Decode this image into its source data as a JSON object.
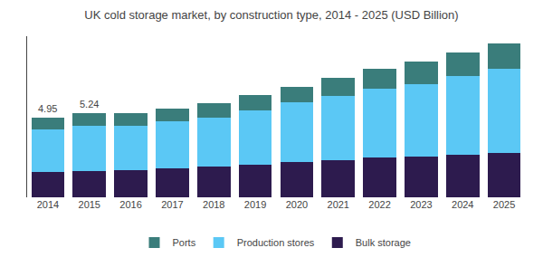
{
  "chart_data": {
    "type": "bar",
    "title": "UK cold storage market, by construction type, 2014 - 2025 (USD Billion)",
    "stacked": true,
    "categories": [
      "2014",
      "2015",
      "2016",
      "2017",
      "2018",
      "2019",
      "2020",
      "2021",
      "2022",
      "2023",
      "2024",
      "2025"
    ],
    "series": [
      {
        "name": "Bulk storage",
        "color": "#2d1b4e",
        "values": [
          1.55,
          1.62,
          1.7,
          1.8,
          1.9,
          2.05,
          2.18,
          2.32,
          2.45,
          2.55,
          2.65,
          2.78
        ]
      },
      {
        "name": "Production stores",
        "color": "#5bc8f5",
        "values": [
          2.65,
          2.8,
          2.75,
          2.9,
          3.05,
          3.35,
          3.7,
          4.0,
          4.3,
          4.5,
          4.9,
          5.2
        ]
      },
      {
        "name": "Ports",
        "color": "#3a7d7b",
        "values": [
          0.75,
          0.82,
          0.78,
          0.82,
          0.87,
          0.95,
          1.0,
          1.1,
          1.2,
          1.35,
          1.45,
          1.55
        ]
      }
    ],
    "annotations": [
      {
        "category": "2014",
        "text": "4.95"
      },
      {
        "category": "2015",
        "text": "5.24"
      }
    ],
    "ylim": [
      0,
      10
    ],
    "tick_labels": "x",
    "grid": false,
    "legend": "bottom"
  }
}
